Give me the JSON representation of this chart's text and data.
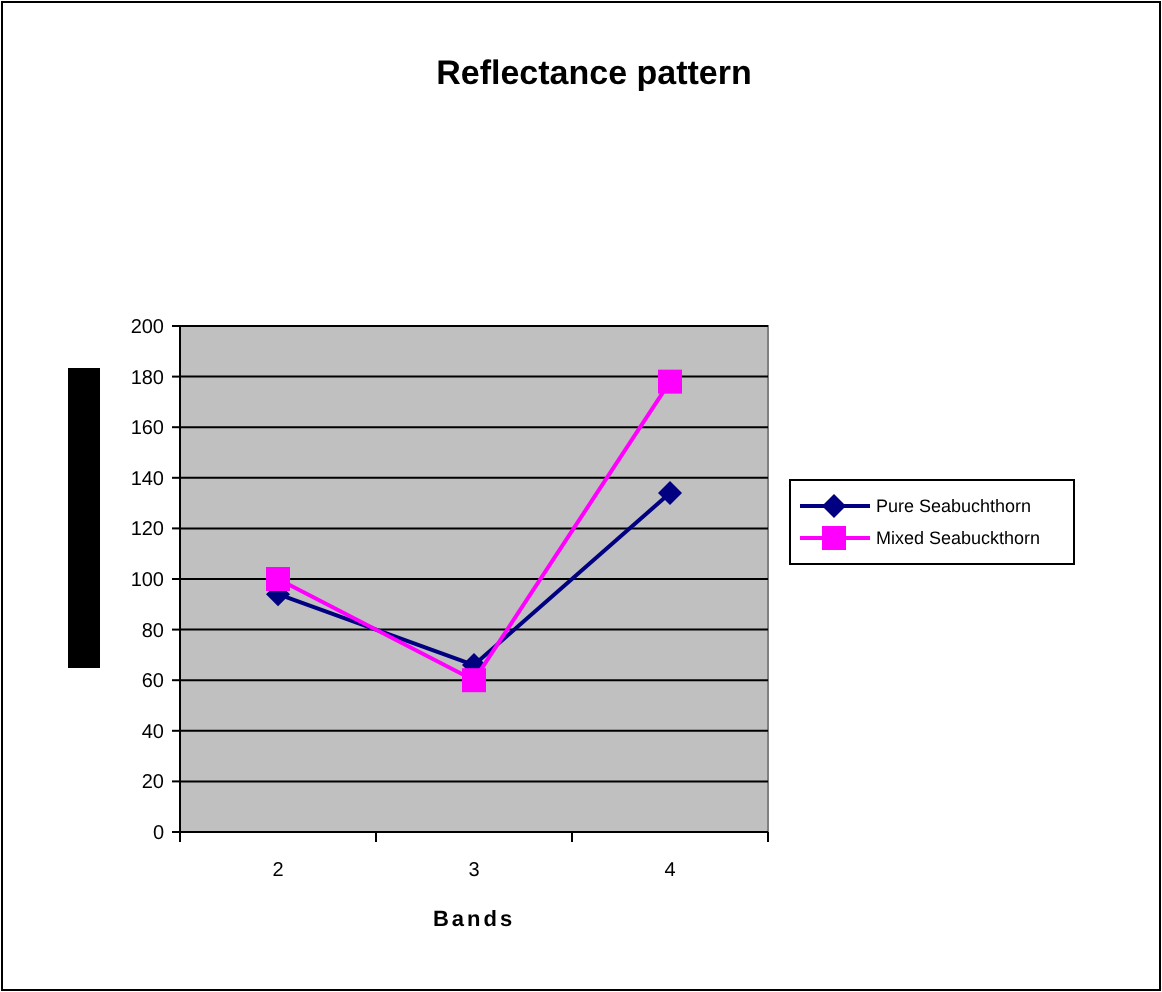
{
  "chart_data": {
    "type": "line",
    "title": "Reflectance pattern",
    "xlabel": "Bands",
    "categories": [
      "2",
      "3",
      "4"
    ],
    "ylim": [
      0,
      200
    ],
    "yticks": [
      0,
      20,
      40,
      60,
      80,
      100,
      120,
      140,
      160,
      180,
      200
    ],
    "grid": "y",
    "legend": "right",
    "series": [
      {
        "name": "Pure Seabuchthorn",
        "color": "#000080",
        "marker": "diamond",
        "values": [
          94,
          66,
          134
        ]
      },
      {
        "name": "Mixed Seabuckthorn",
        "color": "#ff00ff",
        "marker": "square",
        "values": [
          100,
          60,
          178
        ]
      }
    ]
  }
}
